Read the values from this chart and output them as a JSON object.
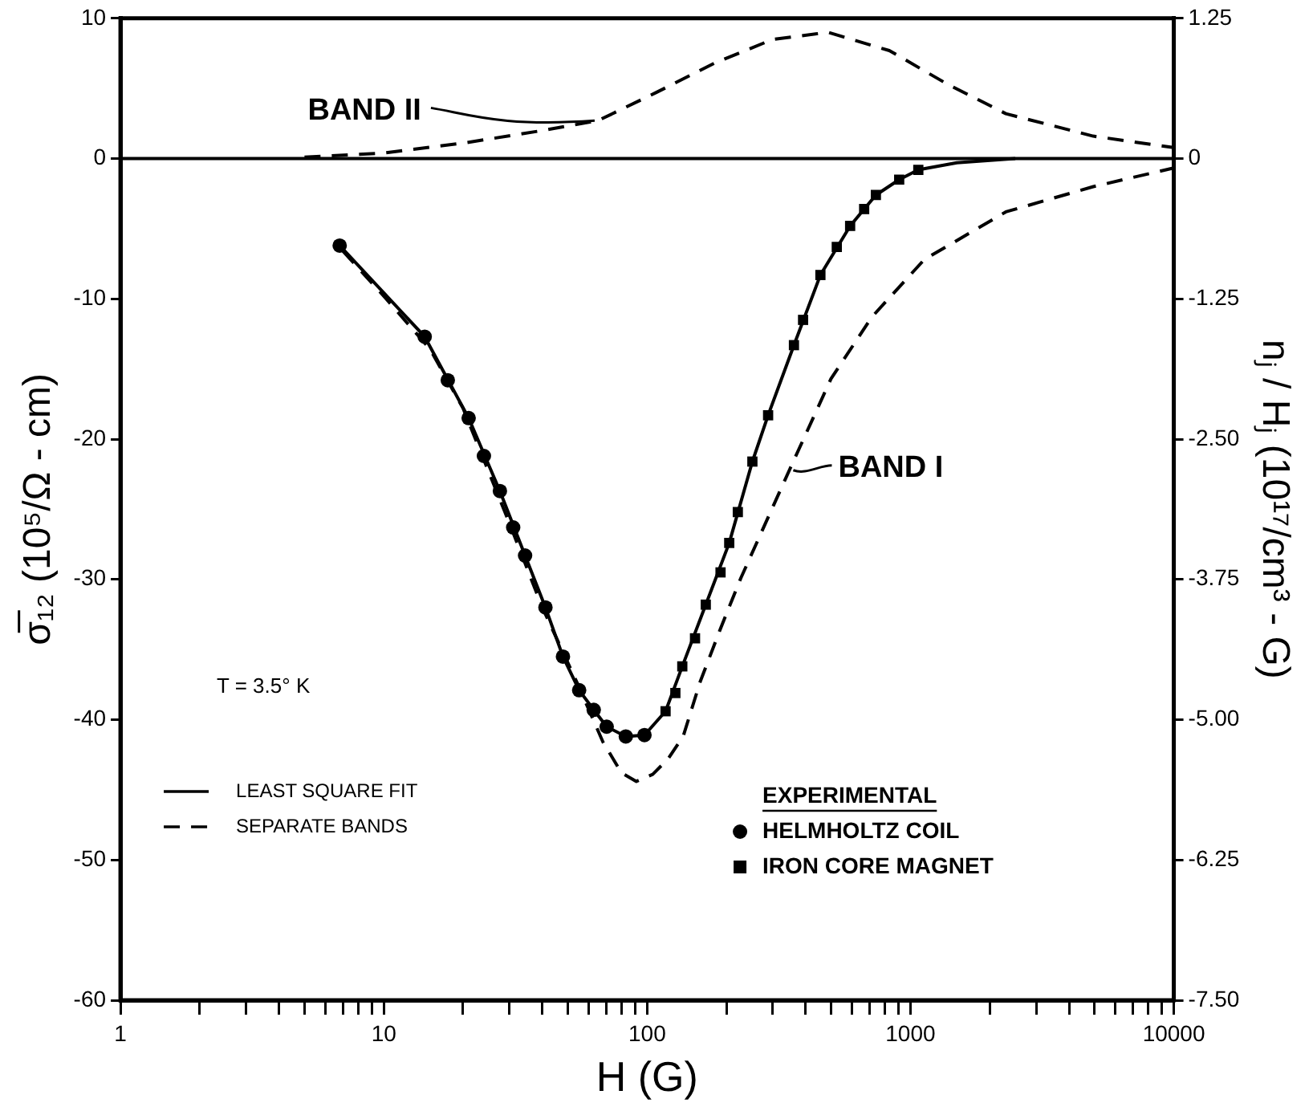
{
  "chart_data": {
    "type": "line",
    "xlabel": "H (G)",
    "ylabel": "σ̅₁₂ (10⁵/Ω - cm)",
    "y2label": "nⱼ / Hⱼ (10¹⁷/cm³ - G)",
    "legend_title": "EXPERIMENTAL",
    "legend": "bottom",
    "log": "x",
    "grid": false,
    "xlim": [
      1,
      10000
    ],
    "xticks": [
      1,
      {
        "value": 2,
        "label": null
      },
      {
        "value": 3,
        "label": null
      },
      {
        "value": 4,
        "label": null
      },
      {
        "value": 5,
        "label": null
      },
      {
        "value": 6,
        "label": null
      },
      {
        "value": 7,
        "label": null
      },
      {
        "value": 8,
        "label": null
      },
      {
        "value": 9,
        "label": null
      },
      10,
      {
        "value": 20,
        "label": null
      },
      {
        "value": 30,
        "label": null
      },
      {
        "value": 40,
        "label": null
      },
      {
        "value": 50,
        "label": null
      },
      {
        "value": 60,
        "label": null
      },
      {
        "value": 70,
        "label": null
      },
      {
        "value": 80,
        "label": null
      },
      {
        "value": 90,
        "label": null
      },
      100,
      {
        "value": 200,
        "label": null
      },
      {
        "value": 300,
        "label": null
      },
      {
        "value": 400,
        "label": null
      },
      {
        "value": 500,
        "label": null
      },
      {
        "value": 600,
        "label": null
      },
      {
        "value": 700,
        "label": null
      },
      {
        "value": 800,
        "label": null
      },
      {
        "value": 900,
        "label": null
      },
      1000,
      {
        "value": 2000,
        "label": null
      },
      {
        "value": 3000,
        "label": null
      },
      {
        "value": 4000,
        "label": null
      },
      {
        "value": 5000,
        "label": null
      },
      {
        "value": 6000,
        "label": null
      },
      {
        "value": 7000,
        "label": null
      },
      {
        "value": 8000,
        "label": null
      },
      {
        "value": 9000,
        "label": null
      },
      10000
    ],
    "ylim": [
      -60,
      10
    ],
    "yticks": [
      -60,
      -50,
      -40,
      -30,
      -20,
      -10,
      0,
      10
    ],
    "y2lim": [
      -7.5,
      1.25
    ],
    "y2ticks": [
      {
        "value": -7.5,
        "label": "-7.50"
      },
      -6.25,
      {
        "value": -5,
        "label": "-5.00"
      },
      -3.75,
      {
        "value": -2.5,
        "label": "-2.50"
      },
      -1.25,
      0,
      1.25
    ],
    "ref_lines": [
      {
        "axis": "y",
        "value": 0,
        "color": "#000000",
        "line_style": "solid"
      }
    ],
    "series": [
      {
        "name": "LEAST SQUARE FIT",
        "color": "#000000",
        "marker": "none",
        "line_style": "solid",
        "x": [
          6.8,
          14.3,
          21,
          27.6,
          34.4,
          41.1,
          47.9,
          55.2,
          62.7,
          70.2,
          83,
          97.7,
          117.5,
          136,
          167,
          205,
          251,
          288,
          361,
          455,
          590,
          739,
          906,
          1071,
          1500,
          2500
        ],
        "values": [
          -6.2,
          -12.7,
          -18.5,
          -23.7,
          -28.3,
          -32,
          -35.5,
          -37.9,
          -39.3,
          -40.5,
          -41.2,
          -41.1,
          -39.4,
          -36.2,
          -31.8,
          -27.4,
          -21.6,
          -18.3,
          -13.3,
          -8.3,
          -4.8,
          -2.6,
          -1.5,
          -0.8,
          -0.3,
          0
        ]
      },
      {
        "name": "SEPARATE BANDS",
        "color": "#000000",
        "marker": "none",
        "line_style": "dashed",
        "x": [
          7,
          10,
          15,
          20,
          30,
          40,
          54,
          68,
          80,
          91,
          105,
          120,
          137,
          159,
          190,
          227,
          349,
          499,
          713,
          1128,
          2302,
          4943,
          9840
        ],
        "values": [
          -6.6,
          -9.8,
          -13.6,
          -17.8,
          -26,
          -32,
          -37.3,
          -41.6,
          -43.8,
          -44.4,
          -43.9,
          -42.8,
          -41.2,
          -37.3,
          -33.5,
          -29.9,
          -22.1,
          -15.7,
          -11.3,
          -7.2,
          -3.8,
          -2,
          -0.7
        ]
      },
      {
        "color": "#000000",
        "marker": "none",
        "line_style": "dashed",
        "x": [
          5,
          10,
          20,
          40,
          65,
          108,
          180,
          300,
          487,
          831,
          1383,
          2303,
          4943,
          9840
        ],
        "values": [
          0.1,
          0.4,
          1.1,
          2,
          2.7,
          4.7,
          6.8,
          8.5,
          9,
          7.7,
          5.3,
          3.2,
          1.6,
          0.8
        ]
      },
      {
        "name": "HELMHOLTZ COIL",
        "type": "scatter",
        "color": "#000000",
        "marker": "circle",
        "x": [
          6.8,
          14.3,
          17.5,
          21,
          24,
          27.6,
          31,
          34.4,
          41.1,
          47.9,
          55.2,
          62.7,
          70.2,
          83,
          97.7
        ],
        "values": [
          -6.2,
          -12.7,
          -15.8,
          -18.5,
          -21.2,
          -23.7,
          -26.3,
          -28.3,
          -32,
          -35.5,
          -37.9,
          -39.3,
          -40.5,
          -41.2,
          -41.1
        ]
      },
      {
        "name": "IRON CORE MAGNET",
        "type": "scatter",
        "color": "#000000",
        "marker": "square",
        "x": [
          117.5,
          128,
          136,
          152,
          167,
          190,
          205,
          221,
          251,
          288,
          361,
          391,
          455,
          525,
          590,
          667,
          739,
          906,
          1071
        ],
        "values": [
          -39.4,
          -38.1,
          -36.2,
          -34.2,
          -31.8,
          -29.5,
          -27.4,
          -25.2,
          -21.6,
          -18.3,
          -13.3,
          -11.5,
          -8.3,
          -6.3,
          -4.8,
          -3.6,
          -2.6,
          -1.5,
          -0.8
        ]
      }
    ],
    "annotations": [
      {
        "text": "BAND II",
        "x": 65,
        "y": 2.7
      },
      {
        "text": "BAND I",
        "x": 349,
        "y": -22.1
      },
      "T = 3.5° K"
    ]
  }
}
